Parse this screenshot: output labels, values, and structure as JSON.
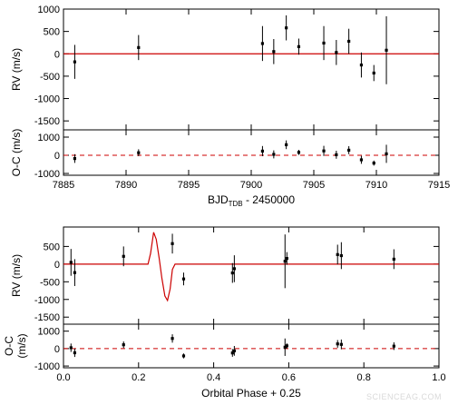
{
  "chart_data": [
    {
      "type": "scatter",
      "panel": "rv-time",
      "xlabel_main": "BJD",
      "xlabel_sub": "TDB",
      "xlabel_rest": " - 2450000",
      "ylabel": "RV (m/s)",
      "xlim": [
        7885,
        7915
      ],
      "ylim": [
        -1700,
        1000
      ],
      "xticks": [
        "7885",
        "7890",
        "7895",
        "7900",
        "7905",
        "7910",
        "7915"
      ],
      "xtick_values": [
        7885,
        7890,
        7895,
        7900,
        7905,
        7910,
        7915
      ],
      "yticks": [
        "1000",
        "500",
        "0",
        "-500",
        "-1000",
        "-1500"
      ],
      "ytick_values": [
        1000,
        500,
        0,
        -500,
        -1000,
        -1500
      ],
      "model_color": "#cc0000",
      "model": "flat",
      "points": [
        {
          "x": 7885.9,
          "y": -180,
          "err": 380
        },
        {
          "x": 7891.0,
          "y": 140,
          "err": 280
        },
        {
          "x": 7900.9,
          "y": 230,
          "err": 390
        },
        {
          "x": 7901.8,
          "y": 50,
          "err": 280
        },
        {
          "x": 7902.8,
          "y": 580,
          "err": 280
        },
        {
          "x": 7903.8,
          "y": 160,
          "err": 180
        },
        {
          "x": 7905.8,
          "y": 240,
          "err": 380
        },
        {
          "x": 7906.8,
          "y": 30,
          "err": 280
        },
        {
          "x": 7907.8,
          "y": 280,
          "err": 280
        },
        {
          "x": 7908.8,
          "y": -250,
          "err": 280
        },
        {
          "x": 7909.8,
          "y": -430,
          "err": 180
        },
        {
          "x": 7910.8,
          "y": 80,
          "err": 760
        }
      ]
    },
    {
      "type": "scatter",
      "panel": "oc-time",
      "ylabel": "O-C (m/s)",
      "xlim": [
        7885,
        7915
      ],
      "ylim": [
        -1100,
        1400
      ],
      "yticks": [
        "1000",
        "0",
        "-1000"
      ],
      "ytick_values": [
        1000,
        0,
        -1000
      ],
      "residual_line_color": "#cc0000",
      "points": [
        {
          "x": 7885.9,
          "y": -180,
          "err": 240
        },
        {
          "x": 7891.0,
          "y": 140,
          "err": 190
        },
        {
          "x": 7900.9,
          "y": 230,
          "err": 280
        },
        {
          "x": 7901.8,
          "y": 50,
          "err": 220
        },
        {
          "x": 7902.8,
          "y": 580,
          "err": 240
        },
        {
          "x": 7903.8,
          "y": 160,
          "err": 140
        },
        {
          "x": 7905.8,
          "y": 240,
          "err": 280
        },
        {
          "x": 7906.8,
          "y": 30,
          "err": 220
        },
        {
          "x": 7907.8,
          "y": 280,
          "err": 220
        },
        {
          "x": 7908.8,
          "y": -250,
          "err": 220
        },
        {
          "x": 7909.8,
          "y": -430,
          "err": 140
        },
        {
          "x": 7910.8,
          "y": 80,
          "err": 500
        }
      ]
    },
    {
      "type": "scatter",
      "panel": "rv-phase",
      "xlabel": "Orbital Phase + 0.25",
      "ylabel": "RV (m/s)",
      "xlim": [
        0.0,
        1.0
      ],
      "ylim": [
        -1700,
        1050
      ],
      "xticks": [
        "0.0",
        "0.2",
        "0.4",
        "0.6",
        "0.8",
        "1.0"
      ],
      "xtick_values": [
        0.0,
        0.2,
        0.4,
        0.6,
        0.8,
        1.0
      ],
      "yticks": [
        "500",
        "0",
        "-500",
        "-1000",
        "-1500"
      ],
      "ytick_values": [
        500,
        0,
        -500,
        -1000,
        -1500
      ],
      "model_color": "#cc0000",
      "model": [
        [
          0.0,
          0
        ],
        [
          0.225,
          0
        ],
        [
          0.232,
          300
        ],
        [
          0.24,
          900
        ],
        [
          0.247,
          700
        ],
        [
          0.255,
          150
        ],
        [
          0.262,
          -400
        ],
        [
          0.27,
          -900
        ],
        [
          0.277,
          -1030
        ],
        [
          0.284,
          -700
        ],
        [
          0.29,
          -150
        ],
        [
          0.297,
          0
        ],
        [
          1.0,
          0
        ]
      ],
      "points": [
        {
          "x": 0.02,
          "y": 50,
          "err": 380
        },
        {
          "x": 0.03,
          "y": -240,
          "err": 380
        },
        {
          "x": 0.16,
          "y": 220,
          "err": 280
        },
        {
          "x": 0.29,
          "y": 580,
          "err": 280
        },
        {
          "x": 0.32,
          "y": -420,
          "err": 180
        },
        {
          "x": 0.45,
          "y": -250,
          "err": 280
        },
        {
          "x": 0.455,
          "y": -130,
          "err": 380
        },
        {
          "x": 0.59,
          "y": 80,
          "err": 760
        },
        {
          "x": 0.595,
          "y": 160,
          "err": 180
        },
        {
          "x": 0.73,
          "y": 270,
          "err": 280
        },
        {
          "x": 0.74,
          "y": 240,
          "err": 380
        },
        {
          "x": 0.88,
          "y": 140,
          "err": 280
        }
      ]
    },
    {
      "type": "scatter",
      "panel": "oc-phase",
      "ylabel_line1": "O-C",
      "ylabel_line2": "(m/s)",
      "xlim": [
        0.0,
        1.0
      ],
      "ylim": [
        -1100,
        1400
      ],
      "yticks": [
        "1000",
        "0",
        "-1000"
      ],
      "ytick_values": [
        1000,
        0,
        -1000
      ],
      "residual_line_color": "#cc0000",
      "points": [
        {
          "x": 0.02,
          "y": 50,
          "err": 240
        },
        {
          "x": 0.03,
          "y": -240,
          "err": 240
        },
        {
          "x": 0.16,
          "y": 220,
          "err": 190
        },
        {
          "x": 0.29,
          "y": 580,
          "err": 240
        },
        {
          "x": 0.32,
          "y": -420,
          "err": 140
        },
        {
          "x": 0.45,
          "y": -250,
          "err": 220
        },
        {
          "x": 0.455,
          "y": -130,
          "err": 280
        },
        {
          "x": 0.59,
          "y": 80,
          "err": 500
        },
        {
          "x": 0.595,
          "y": 160,
          "err": 140
        },
        {
          "x": 0.73,
          "y": 270,
          "err": 220
        },
        {
          "x": 0.74,
          "y": 240,
          "err": 280
        },
        {
          "x": 0.88,
          "y": 140,
          "err": 220
        }
      ]
    }
  ],
  "watermark": "SCIENCEAG.COM"
}
